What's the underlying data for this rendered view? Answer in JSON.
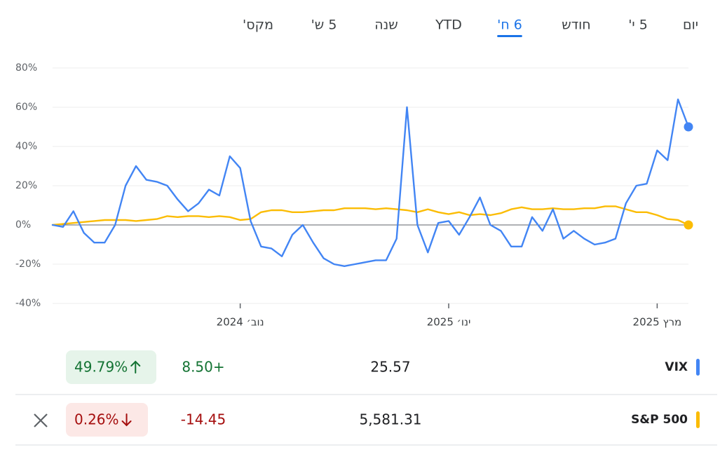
{
  "tabs": [
    {
      "label": "יום"
    },
    {
      "label": "5 י'"
    },
    {
      "label": "חודש"
    },
    {
      "label": "6 ח'",
      "selected": true
    },
    {
      "label": "YTD"
    },
    {
      "label": "שנה"
    },
    {
      "label": "5 ש'"
    },
    {
      "label": "מקס'"
    }
  ],
  "chart_data": {
    "type": "line",
    "categories": [
      null,
      null,
      null,
      null,
      null,
      null,
      null,
      null,
      null,
      null,
      null,
      null,
      null,
      null,
      null,
      null,
      null,
      null,
      "נוב׳ 2024",
      null,
      null,
      null,
      null,
      null,
      null,
      null,
      null,
      null,
      null,
      null,
      null,
      null,
      null,
      null,
      null,
      null,
      null,
      null,
      "ינו׳ 2025",
      null,
      null,
      null,
      null,
      null,
      null,
      null,
      null,
      null,
      null,
      null,
      null,
      null,
      null,
      null,
      null,
      null,
      null,
      null,
      "מרץ 2025",
      null,
      null,
      null
    ],
    "series": [
      {
        "name": "VIX",
        "color": "#4285f4",
        "values": [
          0,
          -1,
          7,
          -4,
          -9,
          -9,
          0,
          20,
          30,
          23,
          22,
          20,
          13,
          7,
          11,
          18,
          15,
          35,
          29,
          2,
          -11,
          -12,
          -16,
          -5,
          0,
          -9,
          -17,
          -20,
          -21,
          -20,
          -19,
          -18,
          -18,
          -7,
          60,
          0,
          -14,
          1,
          2,
          -5,
          4,
          14,
          0,
          -3,
          -11,
          -11,
          4,
          -3,
          8,
          -7,
          -3,
          -7,
          -10,
          -9,
          -7,
          11,
          20,
          21,
          38,
          33,
          64,
          50
        ]
      },
      {
        "name": "S&P 500",
        "color": "#fbbc04",
        "values": [
          0,
          0.5,
          1,
          1.5,
          2,
          2.5,
          2.5,
          2.5,
          2,
          2.5,
          3,
          4.5,
          4,
          4.5,
          4.5,
          4,
          4.5,
          4,
          2.5,
          3,
          6.5,
          7.5,
          7.5,
          6.5,
          6.5,
          7,
          7.5,
          7.5,
          8.5,
          8.5,
          8.5,
          8,
          8.5,
          8,
          7.5,
          6.5,
          8,
          6.5,
          5.5,
          6.5,
          5,
          5.5,
          5,
          6,
          8,
          9,
          8,
          8,
          8.5,
          8,
          8,
          8.5,
          8.5,
          9.5,
          9.5,
          8,
          6.5,
          6.5,
          5,
          3,
          2.5,
          0
        ]
      }
    ],
    "ylim": [
      -40,
      80
    ],
    "yticks": [
      {
        "value": -40,
        "label": "-40%"
      },
      {
        "value": -20,
        "label": "-20%"
      },
      {
        "value": 0,
        "label": "0%"
      },
      {
        "value": 20,
        "label": "20%"
      },
      {
        "value": 40,
        "label": "40%"
      },
      {
        "value": 60,
        "label": "60%"
      },
      {
        "value": 80,
        "label": "80%"
      }
    ],
    "grid": true
  },
  "table": {
    "rows": [
      {
        "price": "25.57",
        "change": "8.50+",
        "change_percent": "49.79%",
        "direction": "up"
      },
      {
        "price": "5,581.31",
        "change": "-14.45",
        "change_percent": "0.26%",
        "direction": "down"
      }
    ]
  }
}
